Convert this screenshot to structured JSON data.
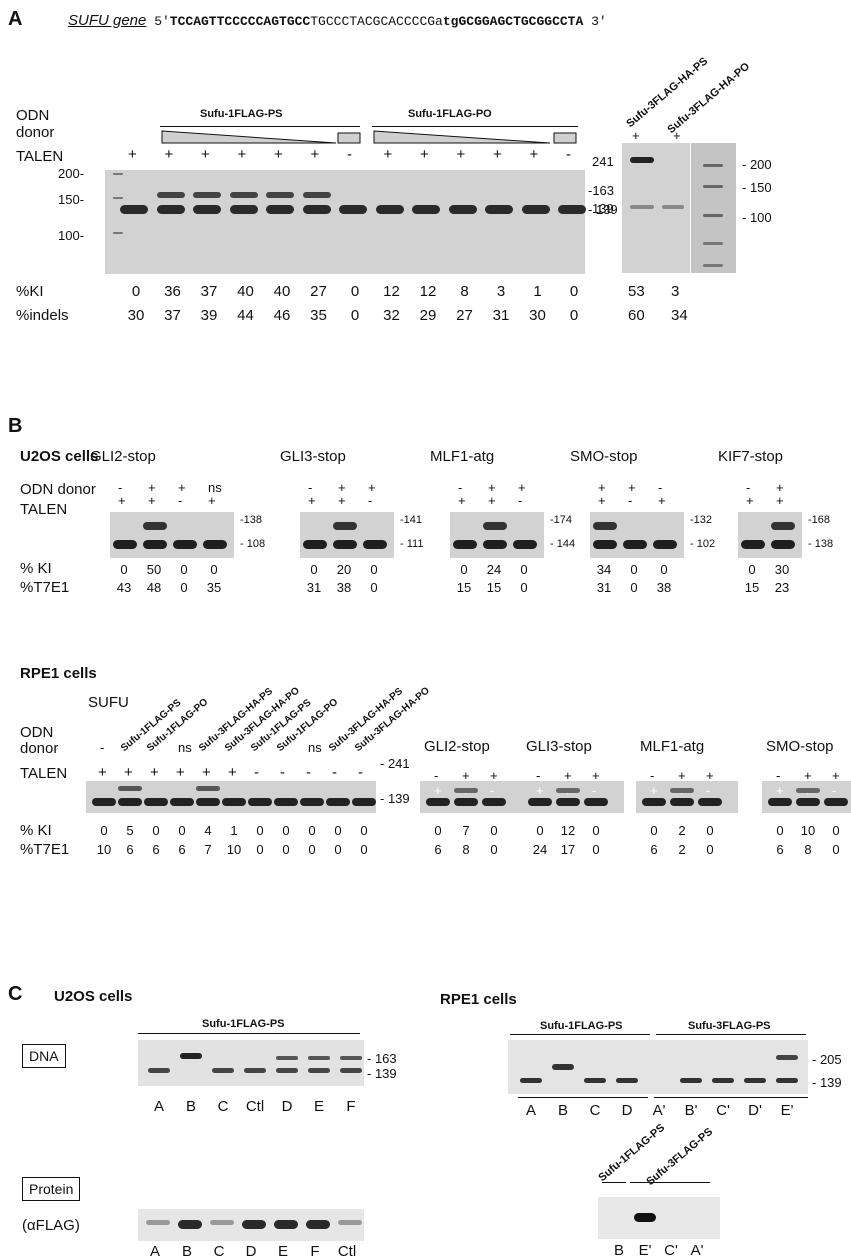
{
  "panel_a": {
    "letter": "A",
    "gene_label": "SUFU gene",
    "seq_prefix": "5'",
    "seq_bold1": "TCCAGTTCCCCCAGTGCC",
    "seq_plain": "TGCCCTACGCACCCCGa",
    "seq_bold2": "tgGCGGAGCTGCGGCCTA",
    "seq_suffix": "3'",
    "row_labels": [
      "ODN",
      "donor",
      "TALEN"
    ],
    "group1": "Sufu-1FLAG-PS",
    "group2": "Sufu-1FLAG-PO",
    "right_lanes": [
      "Sufu-3FLAG-HA-PS",
      "Sufu-3FLAG-HA-PO"
    ],
    "talen_signs": [
      "+",
      "+",
      "+",
      "+",
      "+",
      "+",
      "-",
      "+",
      "+",
      "+",
      "+",
      "+",
      "-"
    ],
    "right_talen": [
      "+",
      "+"
    ],
    "markers_left": [
      "200-",
      "150-",
      "100-"
    ],
    "markers_right": [
      "-163",
      "- 139"
    ],
    "markers_side": [
      "241",
      "139"
    ],
    "ladder_labels": [
      "200",
      "150",
      "100"
    ],
    "ki_label": "%KI",
    "indel_label": "%indels",
    "ki": [
      "0",
      "36",
      "37",
      "40",
      "40",
      "27",
      "0",
      "12",
      "12",
      "8",
      "3",
      "1",
      "0"
    ],
    "indels": [
      "30",
      "37",
      "39",
      "44",
      "46",
      "35",
      "0",
      "32",
      "29",
      "27",
      "31",
      "30",
      "0"
    ],
    "ki_right": [
      "53",
      "3"
    ],
    "indels_right": [
      "60",
      "34"
    ]
  },
  "panel_b": {
    "letter": "B",
    "u2os_title": "U2OS cells",
    "row_odn": "ODN  donor",
    "row_talen": "TALEN",
    "ki_label": "% KI",
    "t7_label": "%T7E1",
    "u2os_groups": [
      {
        "name": "GLI2-stop",
        "odn": [
          "-",
          "+",
          "+",
          "ns"
        ],
        "talen": [
          "+",
          "+",
          "-",
          "+"
        ],
        "sizes": [
          "138",
          "108"
        ],
        "ki": [
          "0",
          "50",
          "0",
          "0"
        ],
        "t7": [
          "43",
          "48",
          "0",
          "35"
        ]
      },
      {
        "name": "GLI3-stop",
        "odn": [
          "-",
          "+",
          "+"
        ],
        "talen": [
          "+",
          "+",
          "-"
        ],
        "sizes": [
          "141",
          "111"
        ],
        "ki": [
          "0",
          "20",
          "0"
        ],
        "t7": [
          "31",
          "38",
          "0"
        ]
      },
      {
        "name": "MLF1-atg",
        "odn": [
          "-",
          "+",
          "+"
        ],
        "talen": [
          "+",
          "+",
          "-"
        ],
        "sizes": [
          "174",
          "144"
        ],
        "ki": [
          "0",
          "24",
          "0"
        ],
        "t7": [
          "15",
          "15",
          "0"
        ]
      },
      {
        "name": "SMO-stop",
        "odn": [
          "+",
          "+",
          "-"
        ],
        "talen": [
          "+",
          "-",
          "+"
        ],
        "sizes": [
          "132",
          "102"
        ],
        "ki": [
          "34",
          "0",
          "0"
        ],
        "t7": [
          "31",
          "0",
          "38"
        ]
      },
      {
        "name": "KIF7-stop",
        "odn": [
          "-",
          "+"
        ],
        "talen": [
          "+",
          "+"
        ],
        "sizes": [
          "168",
          "138"
        ],
        "ki": [
          "0",
          "30"
        ],
        "t7": [
          "15",
          "23"
        ]
      }
    ],
    "rpe1_title": "RPE1 cells",
    "sufu_title": "SUFU",
    "rpe_odn_label": "ODN",
    "rpe_donor_label": "donor",
    "rpe_talen_label": "TALEN",
    "sufu_lanes": [
      "-",
      "Sufu-1FLAG-PS",
      "Sufu-1FLAG-PO",
      "ns",
      "Sufu-3FLAG-HA-PS",
      "Sufu-3FLAG-HA-PO",
      "Sufu-1FLAG-PS",
      "Sufu-1FLAG-PO",
      "ns",
      "Sufu-3FLAG-HA-PS",
      "Sufu-3FLAG-HA-PO"
    ],
    "sufu_talen": [
      "+",
      "+",
      "+",
      "+",
      "+",
      "+",
      "-",
      "-",
      "-",
      "-",
      "-"
    ],
    "sufu_sizes": [
      "- 241",
      "- 139"
    ],
    "sufu_ki": [
      "0",
      "5",
      "0",
      "0",
      "4",
      "1",
      "0",
      "0",
      "0",
      "0",
      "0"
    ],
    "sufu_t7": [
      "10",
      "6",
      "6",
      "6",
      "7",
      "10",
      "0",
      "0",
      "0",
      "0",
      "0"
    ],
    "rpe_groups": [
      {
        "name": "GLI2-stop",
        "odn": [
          "-",
          "+",
          "+"
        ],
        "talen": [
          "+",
          "+",
          "-"
        ],
        "ki": [
          "0",
          "7",
          "0"
        ],
        "t7": [
          "6",
          "8",
          "0"
        ]
      },
      {
        "name": "GLI3-stop",
        "odn": [
          "-",
          "+",
          "+"
        ],
        "talen": [
          "+",
          "+",
          "-"
        ],
        "ki": [
          "0",
          "12",
          "0"
        ],
        "t7": [
          "24",
          "17",
          "0"
        ]
      },
      {
        "name": "MLF1-atg",
        "odn": [
          "-",
          "+",
          "+"
        ],
        "talen": [
          "+",
          "+",
          "-"
        ],
        "ki": [
          "0",
          "2",
          "0"
        ],
        "t7": [
          "6",
          "2",
          "0"
        ]
      },
      {
        "name": "SMO-stop",
        "odn": [
          "-",
          "+",
          "+"
        ],
        "talen": [
          "+",
          "+",
          "-"
        ],
        "ki": [
          "0",
          "10",
          "0"
        ],
        "t7": [
          "6",
          "8",
          "0"
        ]
      }
    ]
  },
  "panel_c": {
    "letter": "C",
    "u2os_title": "U2OS cells",
    "rpe1_title": "RPE1 cells",
    "dna_box": "DNA",
    "protein_box": "Protein",
    "flag_label": "(αFLAG)",
    "u2os_group": "Sufu-1FLAG-PS",
    "u2os_lanes": [
      "A",
      "B",
      "C",
      "Ctl",
      "D",
      "E",
      "F"
    ],
    "u2os_sizes": [
      "- 163",
      "- 139"
    ],
    "rpe_group1": "Sufu-1FLAG-PS",
    "rpe_group2": "Sufu-3FLAG-PS",
    "rpe_lanes": [
      "A",
      "B",
      "C",
      "D",
      "A'",
      "B'",
      "C'",
      "D'",
      "E'"
    ],
    "rpe_sizes": [
      "- 205",
      "- 139"
    ],
    "protein_lanes_u2os": [
      "A",
      "B",
      "C",
      "D",
      "E",
      "F",
      "Ctl"
    ],
    "protein_group1": "Sufu-1FLAG-PS",
    "protein_group2": "Sufu-3FLAG-PS",
    "protein_lanes_rpe": [
      "B",
      "E'",
      "C'",
      "A'"
    ]
  }
}
